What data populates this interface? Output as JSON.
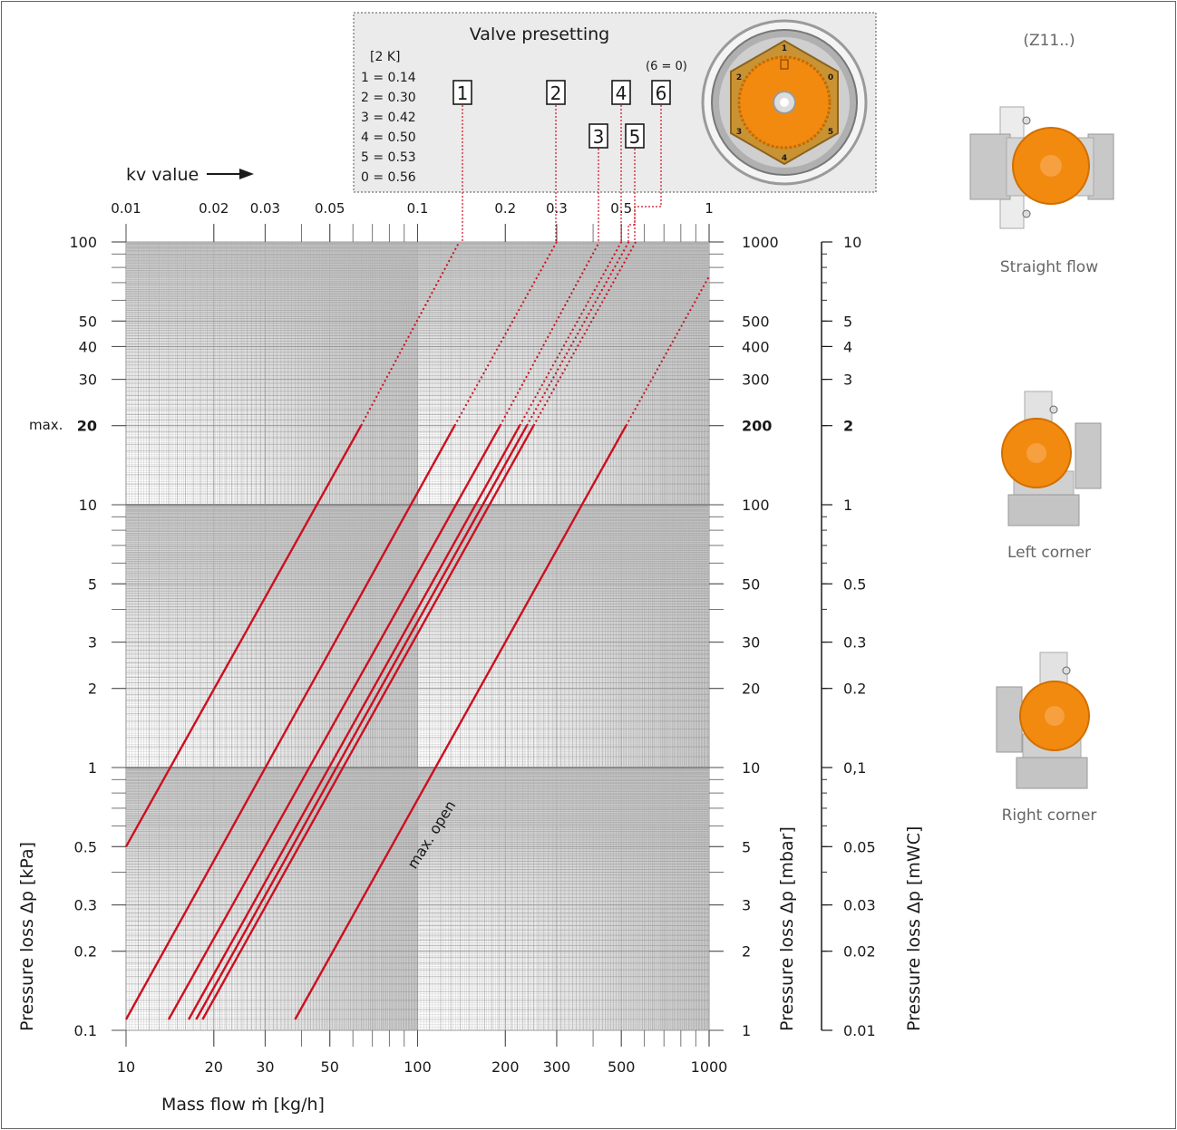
{
  "chart_data": {
    "type": "line",
    "scale": "log-log",
    "x_axis": {
      "label": "Mass flow ṁ [kg/h]",
      "range": [
        10,
        1000
      ],
      "ticks": [
        {
          "value": 10,
          "label": "10"
        },
        {
          "value": 20,
          "label": "20"
        },
        {
          "value": 30,
          "label": "30"
        },
        {
          "value": 50,
          "label": "50"
        },
        {
          "value": 100,
          "label": "100"
        },
        {
          "value": 200,
          "label": "200"
        },
        {
          "value": 300,
          "label": "300"
        },
        {
          "value": 500,
          "label": "500"
        },
        {
          "value": 1000,
          "label": "1000"
        }
      ]
    },
    "y_axis_left": {
      "label": "Pressure loss Δp [kPa]",
      "range": [
        0.1,
        100
      ],
      "ticks": [
        {
          "value": 100,
          "label": "100"
        },
        {
          "value": 50,
          "label": "50"
        },
        {
          "value": 40,
          "label": "40"
        },
        {
          "value": 30,
          "label": "30"
        },
        {
          "value": 20,
          "label": "20"
        },
        {
          "value": 10,
          "label": "10"
        },
        {
          "value": 5,
          "label": "5"
        },
        {
          "value": 3,
          "label": "3"
        },
        {
          "value": 2,
          "label": "2"
        },
        {
          "value": 1,
          "label": "1"
        },
        {
          "value": 0.5,
          "label": "0.5"
        },
        {
          "value": 0.3,
          "label": "0.3"
        },
        {
          "value": 0.2,
          "label": "0.2"
        },
        {
          "value": 0.1,
          "label": "0.1"
        }
      ],
      "max_label": "max."
    },
    "y_axis_mbar": {
      "label": "Pressure loss Δp [mbar]",
      "ticks": [
        {
          "value": 100,
          "label": "1000"
        },
        {
          "value": 50,
          "label": "500"
        },
        {
          "value": 40,
          "label": "400"
        },
        {
          "value": 30,
          "label": "300"
        },
        {
          "value": 20,
          "label": "200"
        },
        {
          "value": 10,
          "label": "100"
        },
        {
          "value": 5,
          "label": "50"
        },
        {
          "value": 3,
          "label": "30"
        },
        {
          "value": 2,
          "label": "20"
        },
        {
          "value": 1,
          "label": "10"
        },
        {
          "value": 0.5,
          "label": "5"
        },
        {
          "value": 0.3,
          "label": "3"
        },
        {
          "value": 0.2,
          "label": "2"
        },
        {
          "value": 0.1,
          "label": "1"
        }
      ]
    },
    "y_axis_mwc": {
      "label": "Pressure loss Δp [mWC]",
      "ticks": [
        {
          "value": 100,
          "label": "10"
        },
        {
          "value": 50,
          "label": "5"
        },
        {
          "value": 40,
          "label": "4"
        },
        {
          "value": 30,
          "label": "3"
        },
        {
          "value": 20,
          "label": "2"
        },
        {
          "value": 10,
          "label": "1"
        },
        {
          "value": 5,
          "label": "0.5"
        },
        {
          "value": 3,
          "label": "0.3"
        },
        {
          "value": 2,
          "label": "0.2"
        },
        {
          "value": 1,
          "label": "0,1"
        },
        {
          "value": 0.5,
          "label": "0.05"
        },
        {
          "value": 0.3,
          "label": "0.03"
        },
        {
          "value": 0.2,
          "label": "0.02"
        },
        {
          "value": 0.1,
          "label": "0.01"
        }
      ]
    },
    "kv_axis": {
      "label": "kv value",
      "ticks": [
        {
          "value": 0.01,
          "label": "0.01"
        },
        {
          "value": 0.02,
          "label": "0.02"
        },
        {
          "value": 0.03,
          "label": "0.03"
        },
        {
          "value": 0.05,
          "label": "0.05"
        },
        {
          "value": 0.1,
          "label": "0.1"
        },
        {
          "value": 0.2,
          "label": "0.2"
        },
        {
          "value": 0.3,
          "label": "0.3"
        },
        {
          "value": 0.5,
          "label": "0.5"
        },
        {
          "value": 1,
          "label": "1"
        }
      ]
    },
    "max_dp_kpa": 20,
    "series": [
      {
        "name": "1",
        "kv": 0.14,
        "x": [
          10,
          64,
          139
        ],
        "y": [
          0.5,
          20,
          100
        ]
      },
      {
        "name": "2",
        "kv": 0.3,
        "x": [
          10,
          134,
          300
        ],
        "y": [
          0.11,
          20,
          100
        ]
      },
      {
        "name": "3",
        "kv": 0.42,
        "x": [
          14,
          192,
          420
        ],
        "y": [
          0.11,
          20,
          100
        ]
      },
      {
        "name": "4",
        "kv": 0.5,
        "x": [
          16.4,
          224,
          500
        ],
        "y": [
          0.11,
          20,
          100
        ]
      },
      {
        "name": "5",
        "kv": 0.53,
        "x": [
          17.4,
          237,
          530
        ],
        "y": [
          0.11,
          20,
          100
        ]
      },
      {
        "name": "6",
        "kv": 0.56,
        "x": [
          18.3,
          250,
          560
        ],
        "y": [
          0.11,
          20,
          100
        ]
      },
      {
        "name": "max. open",
        "kv": 1.16,
        "x": [
          38,
          519,
          1000
        ],
        "y": [
          0.11,
          20,
          74
        ]
      }
    ],
    "line_color": "#cc1020"
  },
  "presetting": {
    "title": "Valve presetting",
    "unit": "[2 K]",
    "values": [
      "1 = 0.14",
      "2 = 0.30",
      "3 = 0.42",
      "4 = 0.50",
      "5 = 0.53",
      "0 = 0.56"
    ],
    "note": "(6 = 0)",
    "markers": [
      "1",
      "2",
      "3",
      "4",
      "5",
      "6"
    ],
    "dial_numbers": [
      "1",
      "0",
      "5",
      "4",
      "3",
      "2"
    ]
  },
  "variants": {
    "code": "(Z11..)",
    "items": [
      {
        "label": "Straight flow"
      },
      {
        "label": "Left corner"
      },
      {
        "label": "Right corner"
      }
    ]
  },
  "colors": {
    "orange": "#f28a0f",
    "brass": "#c99334",
    "red": "#cc1020",
    "grid": "#9a9a9a"
  }
}
